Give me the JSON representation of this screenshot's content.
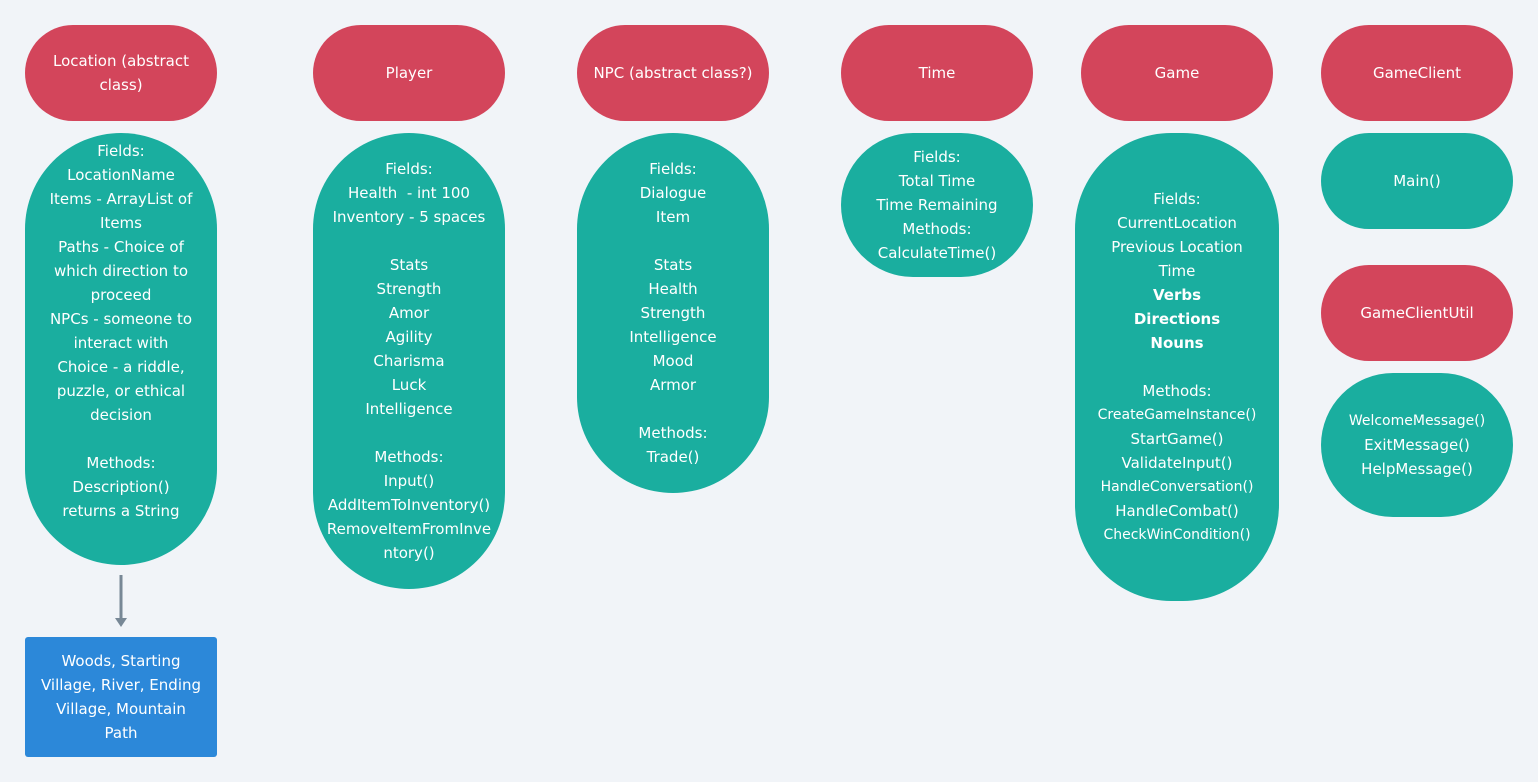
{
  "colors": {
    "background": "#f1f4f8",
    "header": "#d3455b",
    "body": "#1aae9f",
    "note": "#2c88d9",
    "arrow": "#788896"
  },
  "location": {
    "title": "Location (abstract class)",
    "lines": [
      "Fields:",
      "LocationName",
      "Items - ArrayList of Items",
      "Paths - Choice of which direction to proceed",
      "NPCs - someone to interact with",
      "Choice - a riddle, puzzle, or ethical decision",
      "",
      "Methods:",
      "Description() returns a String"
    ],
    "subclasses": "Woods, Starting Village, River, Ending Village, Mountain Path"
  },
  "player": {
    "title": "Player",
    "lines": [
      "Fields:",
      "Health  - int 100",
      "Inventory - 5 spaces",
      "",
      "Stats",
      "Strength",
      "Amor",
      "Agility",
      "Charisma",
      "Luck",
      "Intelligence",
      "",
      "Methods:",
      "Input()",
      "AddItemToInventory()",
      "RemoveItemFromInventory()"
    ]
  },
  "npc": {
    "title": "NPC (abstract class?)",
    "lines": [
      "Fields:",
      "Dialogue",
      "Item",
      "",
      "Stats",
      "Health",
      "Strength",
      "Intelligence",
      "Mood",
      "Armor",
      "",
      "Methods:",
      "Trade()"
    ]
  },
  "time": {
    "title": "Time",
    "lines": [
      "Fields:",
      "Total Time",
      "Time Remaining",
      "Methods:",
      "CalculateTime()"
    ]
  },
  "game": {
    "title": "Game",
    "lines": [
      "Fields:",
      "CurrentLocation",
      "Previous Location",
      "Time"
    ],
    "bold_lines": [
      "Verbs",
      "Directions",
      "Nouns"
    ],
    "methods_lines": [
      "Methods:",
      "CreateGameInstance()",
      "StartGame()",
      "ValidateInput()",
      "HandleConversation()",
      "HandleCombat()",
      "CheckWinCondition()"
    ]
  },
  "game_client": {
    "title": "GameClient",
    "lines": [
      "Main()"
    ]
  },
  "game_client_util": {
    "title": "GameClientUtil",
    "lines": [
      "WelcomeMessage()",
      "ExitMessage()",
      "HelpMessage()"
    ]
  }
}
